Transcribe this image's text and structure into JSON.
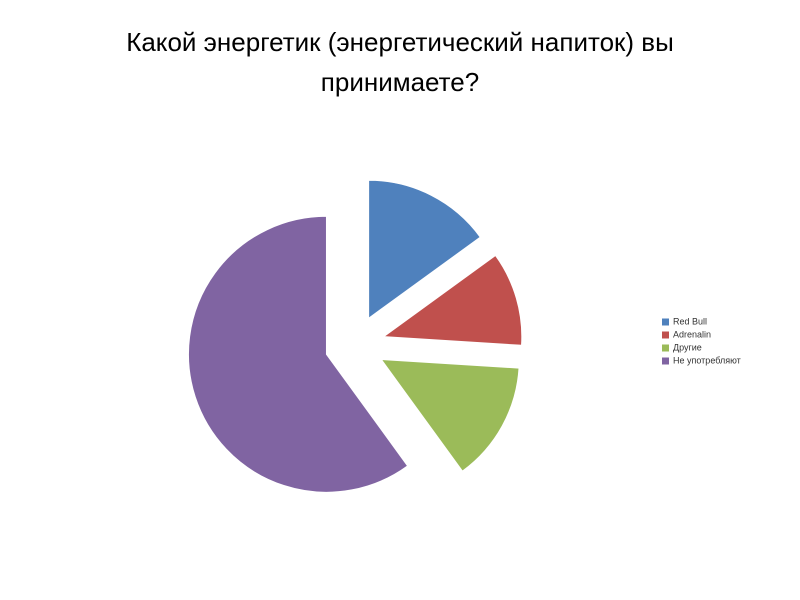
{
  "chart_data": {
    "type": "pie",
    "title": "Какой энергетик (энергетический напиток) вы принимаете?",
    "categories": [
      "Red Bull",
      "Adrenalin",
      "Другие",
      "Не употребляют"
    ],
    "values": [
      15,
      11,
      14,
      60
    ],
    "colors": [
      "#4f81bd",
      "#c0504d",
      "#9bbb59",
      "#8064a2"
    ],
    "legend": "right"
  }
}
